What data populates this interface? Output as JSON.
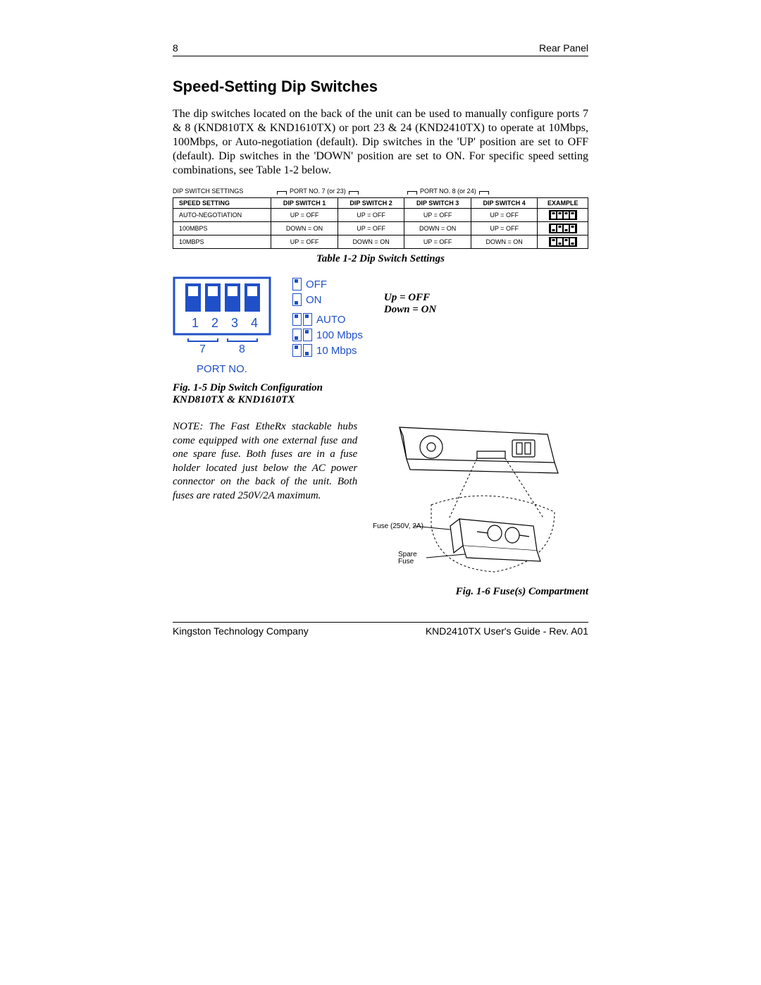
{
  "header": {
    "page_number": "8",
    "section": "Rear Panel"
  },
  "title": "Speed-Setting Dip Switches",
  "body": "The dip switches located on the back of the unit can be used to manually configure ports 7 & 8 (KND810TX & KND1610TX) or port 23 & 24 (KND2410TX) to operate at 10Mbps, 100Mbps, or Auto-negotiation (default). Dip switches in the 'UP' position are set to OFF (default). Dip switches in the 'DOWN' position are set to ON. For specific speed setting combinations, see Table 1-2 below.",
  "table": {
    "top_label": "DIP SWITCH SETTINGS",
    "port7": "PORT NO. 7 (or 23)",
    "port8": "PORT NO. 8 (or 24)",
    "columns": [
      "SPEED SETTING",
      "DIP SWITCH 1",
      "DIP SWITCH 2",
      "DIP SWITCH 3",
      "DIP SWITCH 4",
      "EXAMPLE"
    ],
    "rows": [
      {
        "cells": [
          "AUTO-NEGOTIATION",
          "UP = OFF",
          "UP = OFF",
          "UP = OFF",
          "UP = OFF"
        ],
        "pattern": [
          "up",
          "up",
          "up",
          "up"
        ]
      },
      {
        "cells": [
          "100MBPS",
          "DOWN = ON",
          "UP = OFF",
          "DOWN = ON",
          "UP = OFF"
        ],
        "pattern": [
          "dn",
          "up",
          "dn",
          "up"
        ]
      },
      {
        "cells": [
          "10MBPS",
          "UP = OFF",
          "DOWN = ON",
          "UP = OFF",
          "DOWN = ON"
        ],
        "pattern": [
          "up",
          "dn",
          "up",
          "dn"
        ]
      }
    ],
    "caption": "Table 1-2   Dip Switch Settings"
  },
  "diagram": {
    "numbers": [
      "1",
      "2",
      "3",
      "4"
    ],
    "port7": "7",
    "port8": "8",
    "port_label": "PORT NO.",
    "legend": {
      "off": "OFF",
      "on": "ON",
      "auto": "AUTO",
      "m100": "100 Mbps",
      "m10": "10 Mbps"
    },
    "side": {
      "up": "Up = OFF",
      "down": "Down = ON"
    },
    "caption1": "Fig. 1-5 Dip Switch Configuration",
    "caption2": "KND810TX & KND1610TX",
    "color": "#2050c8"
  },
  "note": "NOTE: The Fast EtheRx stackable hubs come equipped with one external fuse and one spare fuse. Both fuses are in a fuse holder located just below the AC power connector on the back of the unit. Both fuses are rated 250V/2A maximum.",
  "fuse": {
    "label_fuse": "Fuse (250V, 2A)",
    "label_spare": "Spare\nFuse",
    "caption": "Fig. 1-6 Fuse(s) Compartment"
  },
  "footer": {
    "left": "Kingston Technology Company",
    "right": "KND2410TX User's Guide - Rev. A01"
  }
}
